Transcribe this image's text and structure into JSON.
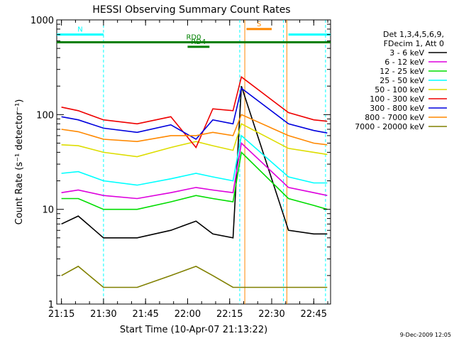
{
  "chart_data": {
    "type": "line",
    "title": "HESSI Observing Summary Count Rates",
    "xlabel": "Start Time (10-Apr-07 21:13:22)",
    "ylabel": "Count Rate (s⁻¹ detector⁻¹)",
    "yscale": "log",
    "xlim": [
      21.222,
      22.85
    ],
    "ylim": [
      1,
      1000
    ],
    "x_ticks": [
      {
        "label": "21:15",
        "value": 21.25
      },
      {
        "label": "21:30",
        "value": 21.5
      },
      {
        "label": "21:45",
        "value": 21.75
      },
      {
        "label": "22:00",
        "value": 22.0
      },
      {
        "label": "22:15",
        "value": 22.25
      },
      {
        "label": "22:30",
        "value": 22.5
      },
      {
        "label": "22:45",
        "value": 22.75
      }
    ],
    "y_ticks": [
      {
        "label": "1",
        "value": 1
      },
      {
        "label": "10",
        "value": 10
      },
      {
        "label": "100",
        "value": 100
      },
      {
        "label": "1000",
        "value": 1000
      }
    ],
    "legend_position": "right",
    "legend_header": [
      "Det 1,3,4,5,6,9,",
      "FDecim 1, Att 0"
    ],
    "series": [
      {
        "name": "3 - 6 keV",
        "color": "#000000",
        "x": [
          21.25,
          21.35,
          21.5,
          21.7,
          21.9,
          22.05,
          22.15,
          22.27,
          22.32,
          22.6,
          22.75,
          22.83
        ],
        "y": [
          7,
          8.5,
          5,
          5,
          6,
          7.5,
          5.5,
          5,
          200,
          6,
          5.5,
          5.5
        ]
      },
      {
        "name": "6 - 12 keV",
        "color": "#dd00dd",
        "x": [
          21.25,
          21.35,
          21.5,
          21.7,
          21.9,
          22.05,
          22.15,
          22.27,
          22.32,
          22.6,
          22.75,
          22.83
        ],
        "y": [
          15,
          16,
          14,
          13,
          15,
          17,
          16,
          15,
          50,
          17,
          15,
          14
        ]
      },
      {
        "name": "12 - 25 keV",
        "color": "#00dd00",
        "x": [
          21.25,
          21.35,
          21.5,
          21.7,
          21.9,
          22.05,
          22.15,
          22.27,
          22.32,
          22.6,
          22.75,
          22.83
        ],
        "y": [
          13,
          13,
          10,
          10,
          12,
          14,
          13,
          12,
          40,
          13,
          11,
          10
        ]
      },
      {
        "name": "25 - 50 keV",
        "color": "#00ffff",
        "x": [
          21.25,
          21.35,
          21.5,
          21.7,
          21.9,
          22.05,
          22.15,
          22.27,
          22.32,
          22.6,
          22.75,
          22.83
        ],
        "y": [
          24,
          25,
          20,
          18,
          21,
          24,
          22,
          20,
          60,
          22,
          19,
          19
        ]
      },
      {
        "name": "50 - 100 keV",
        "color": "#dddd00",
        "x": [
          21.25,
          21.35,
          21.5,
          21.7,
          21.9,
          22.05,
          22.15,
          22.27,
          22.32,
          22.6,
          22.75,
          22.83
        ],
        "y": [
          48,
          47,
          40,
          36,
          45,
          52,
          47,
          42,
          80,
          44,
          40,
          38
        ]
      },
      {
        "name": "100 - 300 keV",
        "color": "#ee0000",
        "x": [
          21.25,
          21.35,
          21.5,
          21.7,
          21.9,
          22.05,
          22.15,
          22.27,
          22.32,
          22.6,
          22.75,
          22.83
        ],
        "y": [
          120,
          110,
          88,
          80,
          95,
          45,
          115,
          110,
          250,
          105,
          88,
          85
        ]
      },
      {
        "name": "300 - 800 keV",
        "color": "#0000dd",
        "x": [
          21.25,
          21.35,
          21.5,
          21.7,
          21.9,
          22.05,
          22.15,
          22.27,
          22.32,
          22.6,
          22.75,
          22.83
        ],
        "y": [
          95,
          88,
          72,
          65,
          78,
          55,
          88,
          80,
          190,
          80,
          68,
          64
        ]
      },
      {
        "name": "800 - 7000 keV",
        "color": "#ff8800",
        "x": [
          21.25,
          21.35,
          21.5,
          21.7,
          21.9,
          22.05,
          22.15,
          22.27,
          22.32,
          22.6,
          22.75,
          22.83
        ],
        "y": [
          70,
          66,
          55,
          52,
          60,
          60,
          65,
          60,
          100,
          60,
          50,
          48
        ]
      },
      {
        "name": "7000 - 20000 keV",
        "color": "#808000",
        "x": [
          21.25,
          21.35,
          21.5,
          21.7,
          21.9,
          22.05,
          22.15,
          22.27,
          22.32,
          22.6,
          22.75,
          22.83
        ],
        "y": [
          2,
          2.5,
          1.5,
          1.5,
          2,
          2.5,
          2,
          1.5,
          1.5,
          1.5,
          1.5,
          1.5
        ]
      }
    ],
    "annotations": [
      {
        "text": "N",
        "color": "#00ffff",
        "x_start": 21.222,
        "x_end": 21.5,
        "y": 700
      },
      {
        "text": "S",
        "color": "#ff8800",
        "x_start": 22.35,
        "x_end": 22.5,
        "y": 800
      },
      {
        "text": "",
        "color": "#00ffff",
        "x_start": 22.6,
        "x_end": 22.85,
        "y": 700
      },
      {
        "text": "RD0",
        "color": "#008000",
        "x_start": 21.222,
        "x_end": 22.85,
        "y": 580
      },
      {
        "text": "RD4",
        "color": "#008000",
        "x_start": 22.0,
        "x_end": 22.13,
        "y": 520
      }
    ],
    "vertical_markers": [
      {
        "x": 21.5,
        "color": "#00ffff",
        "style": "dashed"
      },
      {
        "x": 22.31,
        "color": "#00ffff",
        "style": "dashed"
      },
      {
        "x": 22.34,
        "color": "#ff8800",
        "style": "solid"
      },
      {
        "x": 22.57,
        "color": "#00ffff",
        "style": "dashed"
      },
      {
        "x": 22.59,
        "color": "#ff8800",
        "style": "solid"
      },
      {
        "x": 22.82,
        "color": "#00ffff",
        "style": "dashed"
      }
    ]
  },
  "footer": {
    "date": "9-Dec-2009 12:05"
  }
}
